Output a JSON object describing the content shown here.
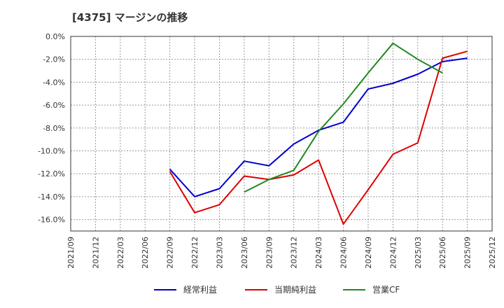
{
  "chart_data": {
    "type": "line",
    "title": "[4375]  マージンの推移",
    "xlabel": "",
    "ylabel": "",
    "ylim": [
      -17,
      0
    ],
    "grid": true,
    "legend_position": "bottom",
    "x": [
      "2021/09",
      "2021/12",
      "2022/03",
      "2022/06",
      "2022/09",
      "2022/12",
      "2023/03",
      "2023/06",
      "2023/09",
      "2023/12",
      "2024/03",
      "2024/06",
      "2024/09",
      "2024/12",
      "2025/03",
      "2025/06",
      "2025/09",
      "2025/12"
    ],
    "y_ticks": [
      0,
      -2,
      -4,
      -6,
      -8,
      -10,
      -12,
      -14,
      -16
    ],
    "y_tick_labels": [
      "0.0%",
      "-2.0%",
      "-4.0%",
      "-6.0%",
      "-8.0%",
      "-10.0%",
      "-12.0%",
      "-14.0%",
      "-16.0%"
    ],
    "series": [
      {
        "name": "経常利益",
        "color": "#0000cc",
        "values": [
          null,
          null,
          null,
          null,
          -11.6,
          -14.0,
          -13.3,
          -10.9,
          -11.3,
          -9.4,
          -8.2,
          -7.5,
          -4.6,
          -4.1,
          -3.3,
          -2.2,
          -1.9,
          null
        ]
      },
      {
        "name": "当期純利益",
        "color": "#dd0000",
        "values": [
          null,
          null,
          null,
          null,
          -11.8,
          -15.4,
          -14.7,
          -12.2,
          -12.5,
          -12.1,
          -10.8,
          -16.4,
          -13.4,
          -10.3,
          -9.3,
          -1.9,
          -1.3,
          null
        ]
      },
      {
        "name": "営業CF",
        "color": "#228822",
        "values": [
          null,
          null,
          null,
          null,
          null,
          null,
          null,
          -13.6,
          -12.5,
          -11.7,
          -8.3,
          -5.9,
          -3.2,
          -0.6,
          -2.0,
          -3.2,
          null,
          null
        ]
      }
    ]
  }
}
